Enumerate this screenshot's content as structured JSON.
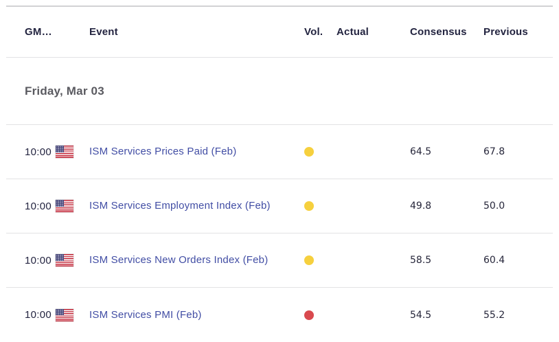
{
  "widget": "economic-calendar",
  "colors": {
    "event_link": "#414da4",
    "vol_medium_dot": "#f6d03e",
    "vol_high_dot": "#d9494e",
    "header_text": "#232440",
    "date_text": "#5a5a60",
    "divider": "#e2e2e4"
  },
  "table": {
    "columns": {
      "gmt": "GM…",
      "event": "Event",
      "vol": "Vol.",
      "actual": "Actual",
      "consensus": "Consensus",
      "previous": "Previous"
    },
    "date_header": "Friday, Mar 03",
    "rows": [
      {
        "time": "10:00",
        "flag_icon": "us-flag-icon",
        "event": "ISM Services Prices Paid (Feb)",
        "vol_level": "medium",
        "actual": "",
        "consensus": "64.5",
        "previous": "67.8"
      },
      {
        "time": "10:00",
        "flag_icon": "us-flag-icon",
        "event": "ISM Services Employment Index (Feb)",
        "vol_level": "medium",
        "actual": "",
        "consensus": "49.8",
        "previous": "50.0"
      },
      {
        "time": "10:00",
        "flag_icon": "us-flag-icon",
        "event": "ISM Services New Orders Index (Feb)",
        "vol_level": "medium",
        "actual": "",
        "consensus": "58.5",
        "previous": "60.4"
      },
      {
        "time": "10:00",
        "flag_icon": "us-flag-icon",
        "event": "ISM Services PMI (Feb)",
        "vol_level": "high",
        "actual": "",
        "consensus": "54.5",
        "previous": "55.2"
      }
    ]
  }
}
